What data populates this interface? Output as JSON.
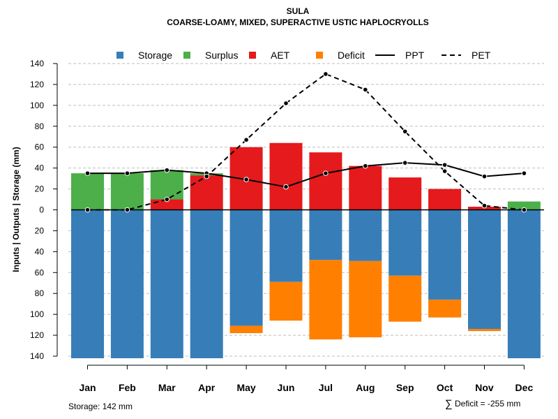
{
  "chart_data": {
    "type": "bar",
    "title": "SULA",
    "subtitle": "COARSE-LOAMY, MIXED, SUPERACTIVE USTIC HAPLOCRYOLLS",
    "ylabel": "Inputs | Outputs | Storage    (mm)",
    "ylim": [
      -140,
      140
    ],
    "yticks": [
      140,
      120,
      100,
      80,
      60,
      40,
      20,
      0,
      -20,
      -40,
      -60,
      -80,
      -100,
      -120,
      -140
    ],
    "ytick_labels": [
      "140",
      "120",
      "100",
      "80",
      "60",
      "40",
      "20",
      "0",
      "20",
      "40",
      "60",
      "80",
      "100",
      "120",
      "140"
    ],
    "categories": [
      "Jan",
      "Feb",
      "Mar",
      "Apr",
      "May",
      "Jun",
      "Jul",
      "Aug",
      "Sep",
      "Oct",
      "Nov",
      "Dec"
    ],
    "legend": [
      {
        "name": "Storage",
        "kind": "box",
        "color": "#377EB8"
      },
      {
        "name": "Surplus",
        "kind": "box",
        "color": "#4DAF4A"
      },
      {
        "name": "AET",
        "kind": "box",
        "color": "#E41A1C"
      },
      {
        "name": "Deficit",
        "kind": "box",
        "color": "#FF7F00"
      },
      {
        "name": "PPT",
        "kind": "solid",
        "color": "#000000"
      },
      {
        "name": "PET",
        "kind": "dashed",
        "color": "#000000"
      }
    ],
    "colors": {
      "storage": "#377EB8",
      "surplus": "#4DAF4A",
      "aet": "#E41A1C",
      "deficit": "#FF7F00",
      "grid": "#BEBEBE"
    },
    "series": [
      {
        "name": "Storage",
        "values": [
          142,
          142,
          142,
          142,
          111,
          69,
          48,
          49,
          63,
          86,
          114,
          142
        ]
      },
      {
        "name": "Deficit",
        "values": [
          0,
          0,
          0,
          0,
          7,
          37,
          76,
          73,
          44,
          17,
          2,
          0
        ]
      },
      {
        "name": "Surplus",
        "values": [
          35,
          35,
          28,
          2,
          0,
          0,
          0,
          0,
          0,
          0,
          0,
          8
        ]
      },
      {
        "name": "AET",
        "values": [
          0,
          0,
          10,
          33,
          60,
          64,
          55,
          42,
          31,
          20,
          3,
          0
        ]
      },
      {
        "name": "PPT",
        "values": [
          35,
          35,
          38,
          35,
          29,
          22,
          35,
          42,
          45,
          43,
          32,
          35
        ]
      },
      {
        "name": "PET",
        "values": [
          0,
          0,
          10,
          32,
          67,
          102,
          130,
          115,
          75,
          37,
          4,
          0
        ]
      }
    ]
  },
  "footer": {
    "storage_text": "Storage: 142 mm",
    "deficit_symbol": "∑",
    "deficit_text": "Deficit = -255 mm"
  }
}
